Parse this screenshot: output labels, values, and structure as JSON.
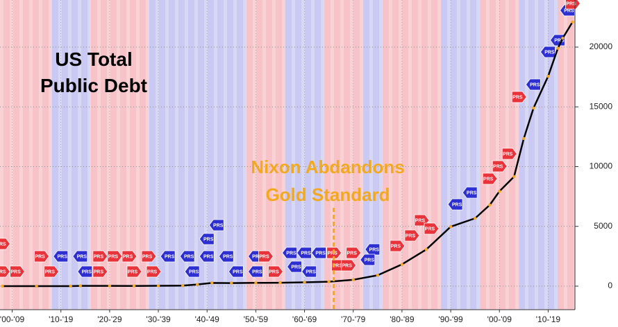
{
  "chart_data": {
    "type": "line",
    "title": "US Total Public Debt",
    "annotation": "Nixon Abdandons Gold Standard",
    "annotation_x": 1971,
    "annotation_color": "#f2a91f",
    "x": [
      1903,
      1910,
      1917,
      1919,
      1925,
      1930,
      1935,
      1940,
      1943,
      1946,
      1950,
      1955,
      1960,
      1965,
      1970,
      1975,
      1980,
      1985,
      1990,
      1995,
      2000,
      2003,
      2005,
      2008,
      2010,
      2012,
      2015,
      2017,
      2018,
      2020
    ],
    "series": [
      {
        "name": "US Total Public Debt",
        "color": "#000000",
        "values": [
          1.2,
          1.1,
          3,
          25.5,
          20.5,
          16.2,
          28.7,
          43,
          137,
          269,
          257,
          274,
          286,
          317,
          371,
          533,
          908,
          1823,
          3070,
          4974,
          5674,
          6783,
          7933,
          9160,
          12350,
          14900,
          17560,
          19900,
          20750,
          22100
        ]
      }
    ],
    "marker_color": "#f2a91f",
    "xlim": [
      1902.5,
      2020.5
    ],
    "xticks": [
      {
        "value": 1905,
        "label": "'00-'09"
      },
      {
        "value": 1915,
        "label": "'10-'19"
      },
      {
        "value": 1925,
        "label": "'20-'29"
      },
      {
        "value": 1935,
        "label": "'30-'39"
      },
      {
        "value": 1945,
        "label": "'40-'49"
      },
      {
        "value": 1955,
        "label": "'50-'59"
      },
      {
        "value": 1965,
        "label": "'60-'69"
      },
      {
        "value": 1975,
        "label": "'70-'79"
      },
      {
        "value": 1985,
        "label": "'80-'89"
      },
      {
        "value": 1995,
        "label": "'90-'99"
      },
      {
        "value": 2005,
        "label": "'00-'09"
      },
      {
        "value": 2015,
        "label": "'10-'19"
      }
    ],
    "ylim": [
      -1970,
      23940
    ],
    "yticks": [
      0,
      5000,
      10000,
      15000,
      20000
    ],
    "grid": true,
    "party_bands": [
      {
        "start": 1901,
        "end": 1913,
        "color": "#f8c3c8"
      },
      {
        "start": 1913,
        "end": 1921,
        "color": "#c9c9f3"
      },
      {
        "start": 1921,
        "end": 1933,
        "color": "#f8c3c8"
      },
      {
        "start": 1933,
        "end": 1953,
        "color": "#c9c9f3"
      },
      {
        "start": 1953,
        "end": 1961,
        "color": "#f8c3c8"
      },
      {
        "start": 1961,
        "end": 1969,
        "color": "#c9c9f3"
      },
      {
        "start": 1969,
        "end": 1977,
        "color": "#f8c3c8"
      },
      {
        "start": 1977,
        "end": 1981,
        "color": "#c9c9f3"
      },
      {
        "start": 1981,
        "end": 1993,
        "color": "#f8c3c8"
      },
      {
        "start": 1993,
        "end": 2001,
        "color": "#c9c9f3"
      },
      {
        "start": 2001,
        "end": 2009,
        "color": "#f8c3c8"
      },
      {
        "start": 2009,
        "end": 2017,
        "color": "#c9c9f3"
      },
      {
        "start": 2017,
        "end": 2021,
        "color": "#f8c3c8"
      }
    ],
    "flags": {
      "label": "PRS",
      "points": [
        {
          "x": 1903,
          "y": 3536,
          "color": "#e8333a"
        },
        {
          "x": 1903,
          "y": 1217,
          "color": "#e8333a"
        },
        {
          "x": 1906,
          "y": 1217,
          "color": "#e8333a"
        },
        {
          "x": 1911,
          "y": 2493,
          "color": "#e8333a"
        },
        {
          "x": 1913,
          "y": 1217,
          "color": "#e8333a"
        },
        {
          "x": 1915,
          "y": 2493,
          "color": "#2d2fd0"
        },
        {
          "x": 1919,
          "y": 2493,
          "color": "#2d2fd0"
        },
        {
          "x": 1920,
          "y": 1217,
          "color": "#2d2fd0"
        },
        {
          "x": 1923,
          "y": 2493,
          "color": "#e8333a"
        },
        {
          "x": 1923,
          "y": 1217,
          "color": "#e8333a"
        },
        {
          "x": 1926,
          "y": 2493,
          "color": "#e8333a"
        },
        {
          "x": 1929,
          "y": 2493,
          "color": "#e8333a"
        },
        {
          "x": 1930,
          "y": 1217,
          "color": "#e8333a"
        },
        {
          "x": 1933,
          "y": 2493,
          "color": "#e8333a"
        },
        {
          "x": 1934,
          "y": 1217,
          "color": "#e8333a"
        },
        {
          "x": 1937,
          "y": 2493,
          "color": "#2d2fd0"
        },
        {
          "x": 1941,
          "y": 2493,
          "color": "#2d2fd0"
        },
        {
          "x": 1942,
          "y": 1217,
          "color": "#2d2fd0"
        },
        {
          "x": 1945,
          "y": 2493,
          "color": "#2d2fd0"
        },
        {
          "x": 1945,
          "y": 3942,
          "color": "#2d2fd0"
        },
        {
          "x": 1947,
          "y": 5101,
          "color": "#2d2fd0"
        },
        {
          "x": 1949,
          "y": 2493,
          "color": "#2d2fd0"
        },
        {
          "x": 1951,
          "y": 1217,
          "color": "#2d2fd0"
        },
        {
          "x": 1955,
          "y": 2493,
          "color": "#2d2fd0"
        },
        {
          "x": 1955,
          "y": 1217,
          "color": "#2d2fd0"
        },
        {
          "x": 1957,
          "y": 2493,
          "color": "#e8333a"
        },
        {
          "x": 1959,
          "y": 1217,
          "color": "#e8333a"
        },
        {
          "x": 1962,
          "y": 2783,
          "color": "#2d2fd0"
        },
        {
          "x": 1963,
          "y": 1623,
          "color": "#2d2fd0"
        },
        {
          "x": 1965,
          "y": 2783,
          "color": "#2d2fd0"
        },
        {
          "x": 1966,
          "y": 1217,
          "color": "#2d2fd0"
        },
        {
          "x": 1968,
          "y": 2783,
          "color": "#2d2fd0"
        },
        {
          "x": 1971,
          "y": 2783,
          "color": "#e8333a"
        },
        {
          "x": 1972,
          "y": 1739,
          "color": "#e8333a"
        },
        {
          "x": 1975,
          "y": 2783,
          "color": "#e8333a"
        },
        {
          "x": 1974,
          "y": 1739,
          "color": "#e8333a"
        },
        {
          "x": 1979,
          "y": 3072,
          "color": "#2d2fd0"
        },
        {
          "x": 1978,
          "y": 2203,
          "color": "#2d2fd0"
        },
        {
          "x": 1984,
          "y": 3362,
          "color": "#e8333a"
        },
        {
          "x": 1987,
          "y": 4232,
          "color": "#e8333a"
        },
        {
          "x": 1989,
          "y": 5507,
          "color": "#e8333a"
        },
        {
          "x": 1991,
          "y": 4812,
          "color": "#e8333a"
        },
        {
          "x": 1996,
          "y": 6840,
          "color": "#2d2fd0"
        },
        {
          "x": 1999,
          "y": 7826,
          "color": "#2d2fd0"
        },
        {
          "x": 2003,
          "y": 8986,
          "color": "#e8333a"
        },
        {
          "x": 2005,
          "y": 10029,
          "color": "#e8333a"
        },
        {
          "x": 2007,
          "y": 11072,
          "color": "#e8333a"
        },
        {
          "x": 2009,
          "y": 15825,
          "color": "#e8333a"
        },
        {
          "x": 2012,
          "y": 16869,
          "color": "#2d2fd0"
        },
        {
          "x": 2015,
          "y": 19593,
          "color": "#2d2fd0"
        },
        {
          "x": 2017,
          "y": 20579,
          "color": "#2d2fd0"
        },
        {
          "x": 2019,
          "y": 23073,
          "color": "#2d2fd0"
        },
        {
          "x": 2020,
          "y": 23652,
          "color": "#e8333a"
        }
      ]
    }
  }
}
